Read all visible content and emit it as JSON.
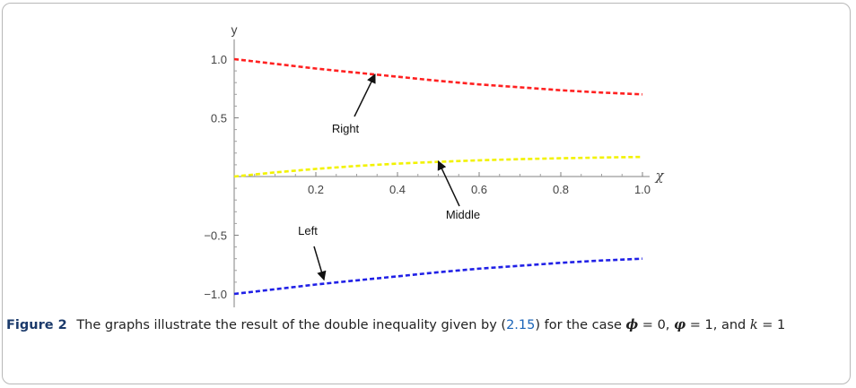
{
  "chart_data": {
    "type": "line",
    "xlabel": "χ",
    "ylabel": "y",
    "xlim": [
      0,
      1.0
    ],
    "ylim": [
      -1.0,
      1.0
    ],
    "x_ticks": [
      "0.2",
      "0.4",
      "0.6",
      "0.8",
      "1.0"
    ],
    "y_ticks": [
      "1.0",
      "0.5",
      "−0.5",
      "−1.0"
    ],
    "series": [
      {
        "name": "Right",
        "color": "#ff2020",
        "x": [
          0,
          0.1,
          0.2,
          0.3,
          0.4,
          0.5,
          0.6,
          0.7,
          0.8,
          0.9,
          1.0
        ],
        "y": [
          1.0,
          0.96,
          0.92,
          0.885,
          0.85,
          0.815,
          0.785,
          0.76,
          0.735,
          0.715,
          0.7
        ]
      },
      {
        "name": "Middle",
        "color": "#f2f200",
        "x": [
          0,
          0.1,
          0.2,
          0.3,
          0.4,
          0.5,
          0.6,
          0.7,
          0.8,
          0.9,
          1.0
        ],
        "y": [
          0.0,
          0.035,
          0.065,
          0.09,
          0.11,
          0.125,
          0.138,
          0.148,
          0.156,
          0.162,
          0.167
        ]
      },
      {
        "name": "Left",
        "color": "#2020e6",
        "x": [
          0,
          0.1,
          0.2,
          0.3,
          0.4,
          0.5,
          0.6,
          0.7,
          0.8,
          0.9,
          1.0
        ],
        "y": [
          -1.0,
          -0.96,
          -0.92,
          -0.885,
          -0.85,
          -0.815,
          -0.785,
          -0.76,
          -0.735,
          -0.715,
          -0.7
        ]
      }
    ],
    "annotations": [
      {
        "text": "Right",
        "arrow_to": [
          0.345,
          0.87
        ]
      },
      {
        "text": "Middle",
        "arrow_to": [
          0.5,
          0.13
        ]
      },
      {
        "text": "Left",
        "arrow_to": [
          0.22,
          -0.88
        ]
      }
    ]
  },
  "caption": {
    "label": "Figure 2",
    "text_before": "The graphs illustrate the result of the double inequality given by (",
    "ref": "2.15",
    "text_after": ") for the case ",
    "phi": "ϕ",
    "phi_val": " = 0, ",
    "varphi": "φ",
    "varphi_val": " = 1, and ",
    "k": "k",
    "k_val": " = 1"
  }
}
